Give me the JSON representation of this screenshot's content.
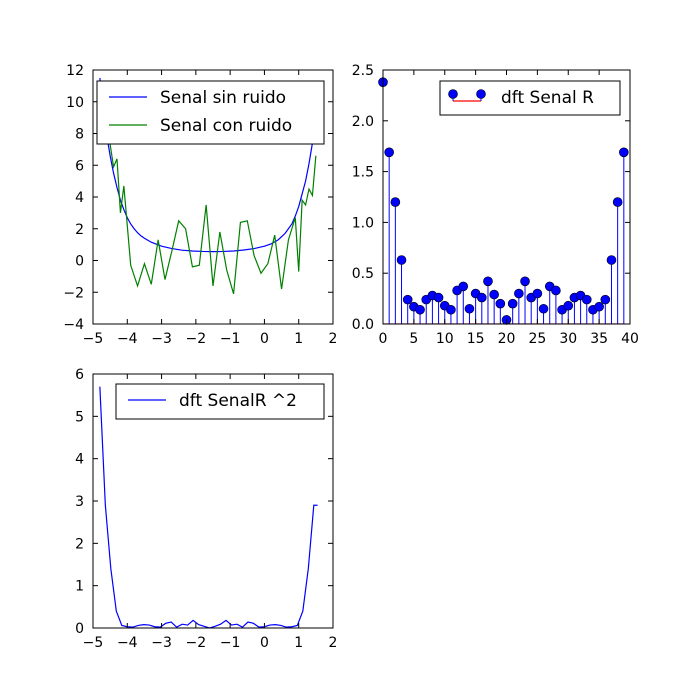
{
  "chart_data": [
    {
      "type": "line",
      "title": "",
      "xlabel": "",
      "ylabel": "",
      "xlim": [
        -5,
        2
      ],
      "ylim": [
        -4,
        12
      ],
      "xticks": [
        -5,
        -4,
        -3,
        -2,
        -1,
        0,
        1,
        2
      ],
      "yticks": [
        -4,
        -2,
        0,
        2,
        4,
        6,
        8,
        10,
        12
      ],
      "legend_position": "top-right",
      "series": [
        {
          "name": "Senal sin ruido",
          "color": "#0000ff",
          "x": [
            -4.8,
            -4.7,
            -4.6,
            -4.5,
            -4.4,
            -4.3,
            -4.2,
            -4.1,
            -4.0,
            -3.9,
            -3.8,
            -3.7,
            -3.6,
            -3.5,
            -3.3,
            -3.0,
            -2.7,
            -2.4,
            -2.1,
            -1.8,
            -1.5,
            -1.2,
            -0.9,
            -0.6,
            -0.3,
            0.0,
            0.2,
            0.4,
            0.6,
            0.8,
            0.9,
            1.0,
            1.1,
            1.2,
            1.3,
            1.4,
            1.5
          ],
          "y": [
            11.5,
            9.5,
            7.9,
            6.6,
            5.5,
            4.6,
            3.8,
            3.2,
            2.7,
            2.3,
            2.0,
            1.75,
            1.55,
            1.4,
            1.15,
            0.9,
            0.75,
            0.65,
            0.6,
            0.57,
            0.56,
            0.57,
            0.6,
            0.66,
            0.75,
            0.9,
            1.05,
            1.3,
            1.7,
            2.3,
            2.8,
            3.4,
            4.2,
            5.0,
            6.1,
            7.4,
            8.9
          ]
        },
        {
          "name": "Senal con ruido",
          "color": "#008000",
          "x": [
            -4.8,
            -4.7,
            -4.6,
            -4.5,
            -4.4,
            -4.3,
            -4.2,
            -4.1,
            -3.9,
            -3.7,
            -3.5,
            -3.3,
            -3.1,
            -2.9,
            -2.7,
            -2.5,
            -2.3,
            -2.1,
            -1.9,
            -1.7,
            -1.5,
            -1.3,
            -1.1,
            -0.9,
            -0.7,
            -0.5,
            -0.3,
            -0.1,
            0.1,
            0.3,
            0.5,
            0.7,
            0.9,
            1.0,
            1.1,
            1.2,
            1.3,
            1.4,
            1.5
          ],
          "y": [
            11.0,
            9.5,
            8.0,
            7.3,
            5.9,
            6.4,
            3.0,
            4.7,
            -0.3,
            -1.6,
            -0.2,
            -1.5,
            1.3,
            -1.2,
            0.6,
            2.5,
            2.0,
            -0.4,
            -0.3,
            3.5,
            -1.6,
            1.8,
            -0.6,
            -2.1,
            2.4,
            2.5,
            0.3,
            -0.8,
            -0.2,
            1.6,
            -1.8,
            1.3,
            2.7,
            -0.7,
            3.8,
            3.5,
            4.5,
            4.1,
            6.6
          ]
        }
      ]
    },
    {
      "type": "stem",
      "title": "",
      "xlabel": "",
      "ylabel": "",
      "xlim": [
        0,
        40
      ],
      "ylim": [
        0,
        2.5
      ],
      "xticks": [
        0,
        5,
        10,
        15,
        20,
        25,
        30,
        35,
        40
      ],
      "yticks": [
        0.0,
        0.5,
        1.0,
        1.5,
        2.0,
        2.5
      ],
      "legend_position": "top-right",
      "series": [
        {
          "name": "dft Senal R",
          "marker_color": "#0000ff",
          "stem_color": "#0000ff",
          "baseline_color": "#ff0000",
          "x": [
            0,
            1,
            2,
            3,
            4,
            5,
            6,
            7,
            8,
            9,
            10,
            11,
            12,
            13,
            14,
            15,
            16,
            17,
            18,
            19,
            20,
            21,
            22,
            23,
            24,
            25,
            26,
            27,
            28,
            29,
            30,
            31,
            32,
            33,
            34,
            35,
            36,
            37,
            38,
            39
          ],
          "y": [
            2.38,
            1.69,
            1.2,
            0.63,
            0.24,
            0.17,
            0.14,
            0.24,
            0.28,
            0.26,
            0.18,
            0.14,
            0.33,
            0.37,
            0.15,
            0.3,
            0.26,
            0.42,
            0.29,
            0.2,
            0.04,
            0.2,
            0.3,
            0.42,
            0.26,
            0.3,
            0.15,
            0.37,
            0.33,
            0.14,
            0.18,
            0.26,
            0.28,
            0.24,
            0.14,
            0.17,
            0.24,
            0.63,
            1.2,
            1.69
          ]
        }
      ]
    },
    {
      "type": "line",
      "title": "",
      "xlabel": "",
      "ylabel": "",
      "xlim": [
        -5,
        2
      ],
      "ylim": [
        0,
        6
      ],
      "xticks": [
        -5,
        -4,
        -3,
        -2,
        -1,
        0,
        1,
        2
      ],
      "yticks": [
        0,
        1,
        2,
        3,
        4,
        5,
        6
      ],
      "legend_position": "top-right",
      "series": [
        {
          "name": "dft SenalR ^2",
          "color": "#0000ff",
          "x": [
            -4.8,
            -4.64,
            -4.48,
            -4.32,
            -4.16,
            -4.0,
            -3.84,
            -3.68,
            -3.52,
            -3.36,
            -3.2,
            -3.04,
            -2.88,
            -2.72,
            -2.56,
            -2.4,
            -2.24,
            -2.08,
            -1.92,
            -1.76,
            -1.6,
            -1.44,
            -1.28,
            -1.12,
            -0.96,
            -0.8,
            -0.64,
            -0.48,
            -0.32,
            -0.16,
            0.0,
            0.16,
            0.32,
            0.48,
            0.64,
            0.8,
            0.96,
            1.12,
            1.28,
            1.44,
            1.55
          ],
          "y": [
            5.7,
            2.9,
            1.4,
            0.4,
            0.06,
            0.03,
            0.02,
            0.06,
            0.08,
            0.07,
            0.03,
            0.02,
            0.11,
            0.14,
            0.02,
            0.09,
            0.07,
            0.18,
            0.08,
            0.04,
            0.002,
            0.04,
            0.09,
            0.18,
            0.07,
            0.09,
            0.02,
            0.14,
            0.11,
            0.02,
            0.03,
            0.07,
            0.08,
            0.06,
            0.02,
            0.03,
            0.06,
            0.4,
            1.4,
            2.9,
            2.9
          ]
        }
      ]
    }
  ]
}
